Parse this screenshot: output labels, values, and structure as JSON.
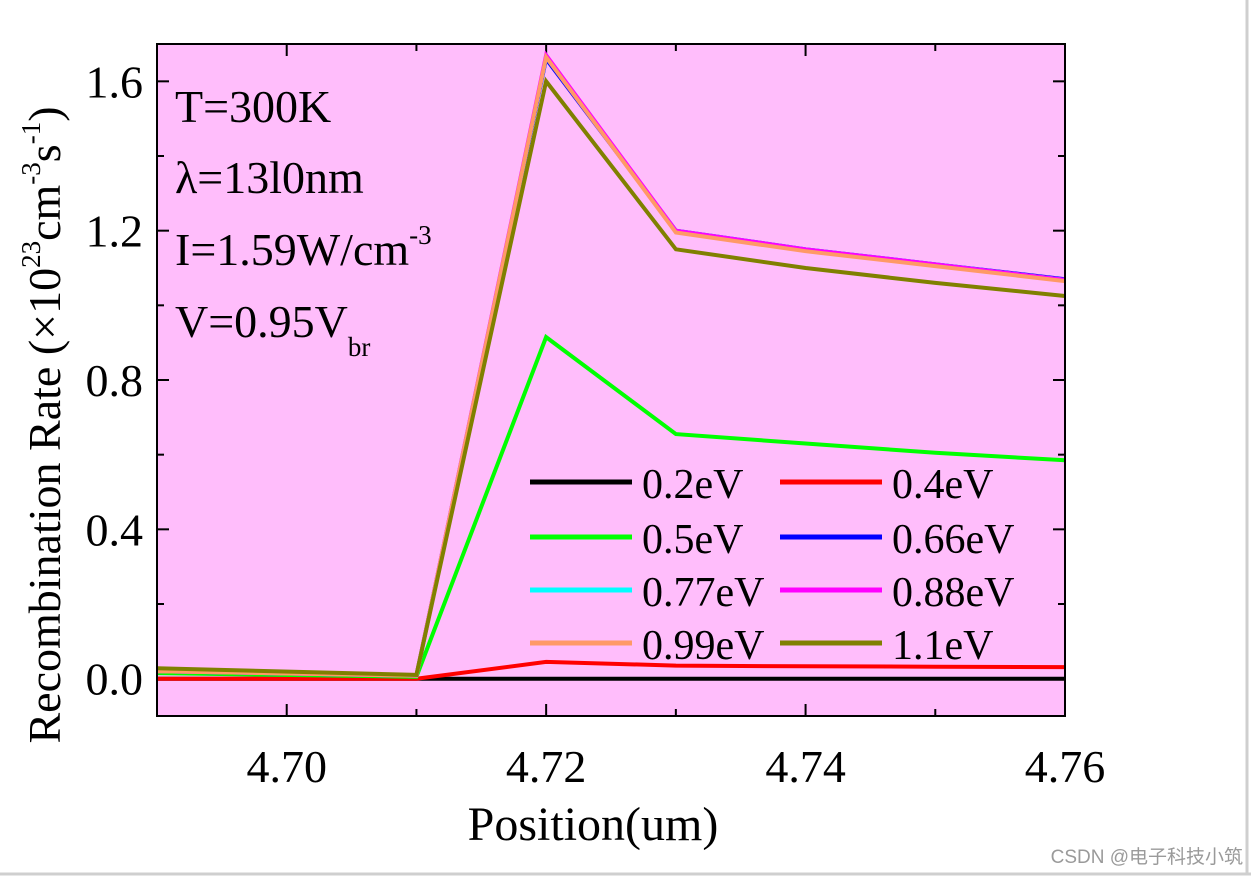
{
  "chart_data": {
    "type": "line",
    "xlabel": "Position(um)",
    "ylabel_main": "Recombination Rate (×10",
    "ylabel_exp1": "23",
    "ylabel_unit1": "cm",
    "ylabel_exp2": "-3",
    "ylabel_unit2": "s",
    "ylabel_exp3": "-1",
    "ylabel_close": ")",
    "xlim": [
      4.69,
      4.76
    ],
    "ylim": [
      -0.1,
      1.7
    ],
    "xticks": [
      4.7,
      4.72,
      4.74,
      4.76
    ],
    "xtick_labels": [
      "4.70",
      "4.72",
      "4.74",
      "4.76"
    ],
    "yticks": [
      0.0,
      0.4,
      0.8,
      1.2,
      1.6
    ],
    "ytick_labels": [
      "0.0",
      "0.4",
      "0.8",
      "1.2",
      "1.6"
    ],
    "background_color": "#ffbdfb",
    "annotations": {
      "temp": "T=300K",
      "wavelength": "λ=13l0nm",
      "intensity_main": "I=1.59W/cm",
      "intensity_exp": "-3",
      "voltage_main": "V=0.95V",
      "voltage_sub": "br"
    },
    "x": [
      4.69,
      4.71,
      4.72,
      4.73,
      4.74,
      4.75,
      4.76
    ],
    "series": [
      {
        "name": "0.2eV",
        "color": "#000000",
        "values": [
          0.0,
          0.0,
          0.0,
          0.0,
          0.0,
          0.0,
          0.0
        ]
      },
      {
        "name": "0.4eV",
        "color": "#ff0000",
        "values": [
          0.0,
          0.0,
          0.045,
          0.035,
          0.033,
          0.032,
          0.031
        ]
      },
      {
        "name": "0.5eV",
        "color": "#00ff00",
        "values": [
          0.015,
          0.005,
          0.915,
          0.655,
          0.63,
          0.605,
          0.585
        ]
      },
      {
        "name": "0.66eV",
        "color": "#0000ff",
        "values": [
          0.02,
          0.008,
          1.66,
          1.2,
          1.15,
          1.11,
          1.07
        ]
      },
      {
        "name": "0.77eV",
        "color": "#00ffff",
        "values": [
          0.02,
          0.008,
          1.665,
          1.2,
          1.15,
          1.11,
          1.068
        ]
      },
      {
        "name": "0.88eV",
        "color": "#ff00ff",
        "values": [
          0.02,
          0.008,
          1.67,
          1.2,
          1.15,
          1.11,
          1.068
        ]
      },
      {
        "name": "0.99eV",
        "color": "#ff9966",
        "values": [
          0.02,
          0.008,
          1.665,
          1.195,
          1.145,
          1.105,
          1.065
        ]
      },
      {
        "name": "1.1eV",
        "color": "#808000",
        "values": [
          0.028,
          0.01,
          1.6,
          1.15,
          1.1,
          1.06,
          1.025
        ]
      }
    ]
  },
  "watermark": "CSDN @电子科技小筑"
}
